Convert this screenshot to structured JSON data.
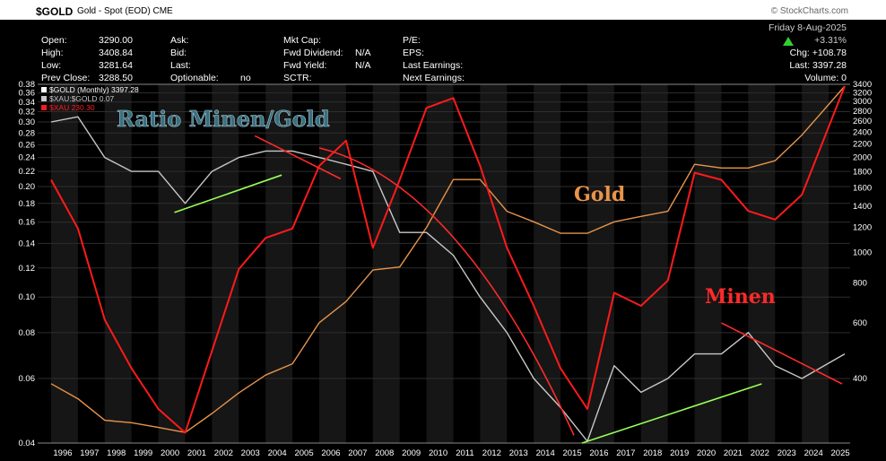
{
  "header": {
    "symbol": "$GOLD",
    "description": "Gold - Spot (EOD)",
    "exchange": "CME",
    "source": "© StockCharts.com"
  },
  "stats": {
    "open_label": "Open:",
    "open": "3290.00",
    "high_label": "High:",
    "high": "3408.84",
    "low_label": "Low:",
    "low": "3281.64",
    "prev_close_label": "Prev Close:",
    "prev_close": "3288.50",
    "ask_label": "Ask:",
    "bid_label": "Bid:",
    "last_label": "Last:",
    "optionable_label": "Optionable:",
    "optionable": "no",
    "mkt_cap_label": "Mkt Cap:",
    "fwd_div_label": "Fwd Dividend:",
    "fwd_div": "N/A",
    "fwd_yield_label": "Fwd Yield:",
    "fwd_yield": "N/A",
    "sctr_label": "SCTR:",
    "pe_label": "P/E:",
    "eps_label": "EPS:",
    "last_earn_label": "Last Earnings:",
    "next_earn_label": "Next Earnings:",
    "date": "Friday  8-Aug-2025",
    "pct_change": "+3.31%",
    "chg": "Chg: +108.78",
    "last_price": "Last: 3397.28",
    "volume": "Volume:       0"
  },
  "colors": {
    "background": "#000000",
    "gold_series": "#e8944a",
    "ratio_series": "#c8c8c8",
    "xau_series": "#ff1a1a",
    "trend_green": "#99ff55",
    "trend_red": "#ff2a2a",
    "up_arrow": "#33cc33"
  },
  "chart_data": {
    "type": "line",
    "x": [
      1996,
      1997,
      1998,
      1999,
      2000,
      2001,
      2002,
      2003,
      2004,
      2005,
      2006,
      2007,
      2008,
      2009,
      2010,
      2011,
      2012,
      2013,
      2014,
      2015,
      2016,
      2017,
      2018,
      2019,
      2020,
      2021,
      2022,
      2023,
      2024,
      2025.6
    ],
    "xlim": [
      1995.5,
      2025.8
    ],
    "x_ticks": [
      "1996",
      "1997",
      "1998",
      "1999",
      "2000",
      "2001",
      "2002",
      "2003",
      "2004",
      "2005",
      "2006",
      "2007",
      "2008",
      "2009",
      "2010",
      "2011",
      "2012",
      "2013",
      "2014",
      "2015",
      "2016",
      "2017",
      "2018",
      "2019",
      "2020",
      "2021",
      "2022",
      "2023",
      "2024",
      "2025"
    ],
    "left_axis": {
      "scale": "log",
      "ticks": [
        "0.04",
        "0.06",
        "0.08",
        "0.10",
        "0.12",
        "0.14",
        "0.16",
        "0.18",
        "0.20",
        "0.22",
        "0.24",
        "0.26",
        "0.28",
        "0.30",
        "0.32",
        "0.34",
        "0.36",
        "0.38"
      ],
      "ylim": [
        0.04,
        0.38
      ]
    },
    "right_axis": {
      "scale": "log",
      "ticks": [
        "400",
        "600",
        "800",
        "1000",
        "1200",
        "1400",
        "1600",
        "1800",
        "2000",
        "2200",
        "2400",
        "2600",
        "2800",
        "3000",
        "3200",
        "3400"
      ],
      "ylim": [
        250,
        3400
      ]
    },
    "series": [
      {
        "name": "$GOLD (Monthly) 3397.28",
        "axis": "right",
        "values": [
          385,
          345,
          295,
          290,
          280,
          270,
          310,
          360,
          410,
          445,
          600,
          700,
          880,
          900,
          1200,
          1700,
          1700,
          1350,
          1250,
          1150,
          1150,
          1250,
          1300,
          1350,
          1900,
          1850,
          1850,
          1950,
          2350,
          3397
        ]
      },
      {
        "name": "$XAU:$GOLD 0.07",
        "axis": "left",
        "values": [
          0.3,
          0.31,
          0.24,
          0.22,
          0.22,
          0.18,
          0.22,
          0.24,
          0.25,
          0.25,
          0.24,
          0.23,
          0.22,
          0.15,
          0.15,
          0.13,
          0.1,
          0.08,
          0.06,
          0.05,
          0.04,
          0.065,
          0.055,
          0.06,
          0.07,
          0.07,
          0.08,
          0.065,
          0.06,
          0.07
        ]
      },
      {
        "name": "$XAU 230.30",
        "axis": "none",
        "values": [
          140,
          110,
          70,
          55,
          45,
          40,
          60,
          90,
          105,
          110,
          150,
          170,
          100,
          140,
          200,
          210,
          150,
          100,
          75,
          55,
          45,
          80,
          75,
          85,
          145,
          140,
          120,
          115,
          130,
          230
        ]
      }
    ],
    "trendlines": [
      {
        "color": "green",
        "from": [
          2000.6,
          0.17
        ],
        "to": [
          2004.6,
          0.215
        ]
      },
      {
        "color": "red",
        "from": [
          2003.6,
          0.275
        ],
        "to": [
          2006.8,
          0.21
        ]
      },
      {
        "color": "red",
        "from": [
          2006.0,
          0.255
        ],
        "to": [
          2015.5,
          0.042
        ],
        "curved": true
      },
      {
        "color": "green",
        "from": [
          2015.8,
          0.04
        ],
        "to": [
          2022.5,
          0.058
        ]
      },
      {
        "color": "red",
        "from": [
          2021.0,
          0.085
        ],
        "to": [
          2025.5,
          0.058
        ]
      }
    ],
    "annotations": [
      {
        "text": "Ratio Minen/Gold",
        "color": "#3a6f7f"
      },
      {
        "text": "Gold",
        "color": "#e8944a"
      },
      {
        "text": "Minen",
        "color": "#ff2a2a"
      }
    ]
  }
}
